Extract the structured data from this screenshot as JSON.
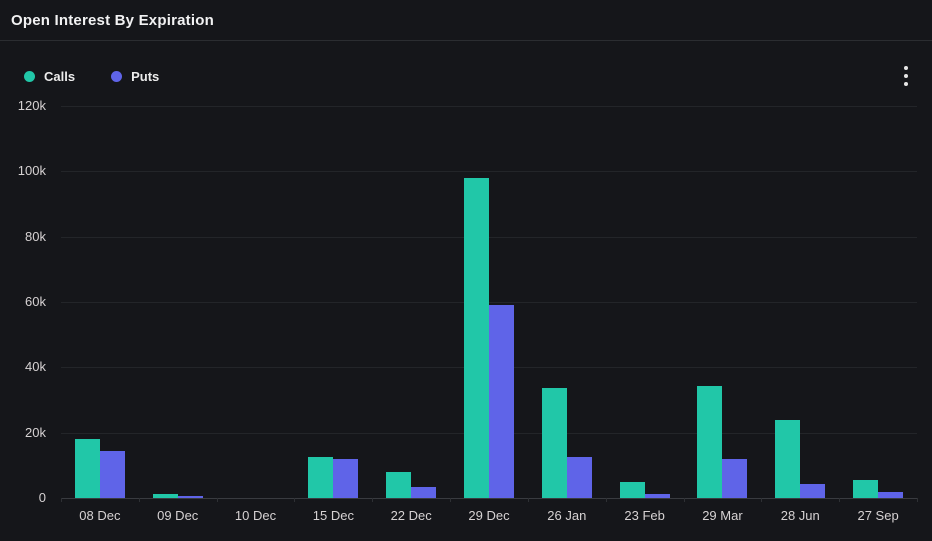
{
  "header": {
    "title": "Open Interest By Expiration"
  },
  "legend": {
    "items": [
      {
        "label": "Calls",
        "color": "#21c7a8"
      },
      {
        "label": "Puts",
        "color": "#5f64e8"
      }
    ]
  },
  "menu": {
    "icon": "kebab-menu-icon"
  },
  "colors": {
    "background": "#15161a",
    "calls": "#21c7a8",
    "puts": "#5f64e8",
    "gridline": "#232529",
    "axis_line": "#393b40",
    "tick_text": "#d6d2d3",
    "title_text": "#f2f2f3"
  },
  "chart_data": {
    "type": "bar",
    "title": "Open Interest By Expiration",
    "xlabel": "",
    "ylabel": "",
    "categories": [
      "08 Dec",
      "09 Dec",
      "10 Dec",
      "15 Dec",
      "22 Dec",
      "29 Dec",
      "26 Jan",
      "23 Feb",
      "29 Mar",
      "28 Jun",
      "27 Sep"
    ],
    "series": [
      {
        "name": "Calls",
        "color": "#21c7a8",
        "values": [
          18000,
          1200,
          0,
          12500,
          8000,
          98000,
          33800,
          4800,
          34300,
          24000,
          5600
        ]
      },
      {
        "name": "Puts",
        "color": "#5f64e8",
        "values": [
          14500,
          500,
          0,
          12000,
          3500,
          59000,
          12700,
          1200,
          11800,
          4400,
          1800
        ]
      }
    ],
    "ylim": [
      0,
      120000
    ],
    "ytick_values": [
      0,
      20000,
      40000,
      60000,
      80000,
      100000,
      120000
    ],
    "ytick_labels": [
      "0",
      "20k",
      "40k",
      "60k",
      "80k",
      "100k",
      "120k"
    ],
    "grid": true,
    "legend_position": "top-left"
  }
}
